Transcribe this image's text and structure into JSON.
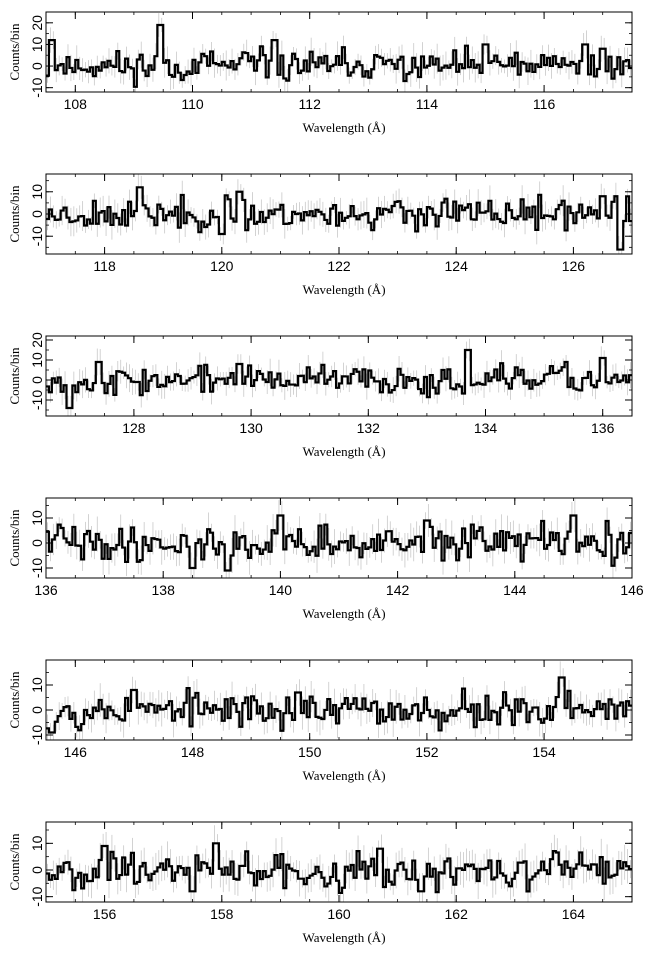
{
  "chart_data": [
    {
      "type": "line",
      "xlim": [
        107.5,
        117.5
      ],
      "ylim": [
        -12,
        25
      ],
      "xticks": [
        108,
        110,
        112,
        114,
        116
      ],
      "yticks": [
        -10,
        0,
        10,
        20
      ],
      "xlabel": "Wavelength (Å)",
      "ylabel": "Counts/bin",
      "seed": 11,
      "peaks": [
        [
          109.45,
          19
        ],
        [
          107.6,
          12
        ],
        [
          111.4,
          12
        ],
        [
          116.7,
          10
        ],
        [
          115.0,
          10
        ],
        [
          117.0,
          8
        ]
      ]
    },
    {
      "type": "line",
      "xlim": [
        117.0,
        127.0
      ],
      "ylim": [
        -18,
        18
      ],
      "xticks": [
        118,
        120,
        122,
        124,
        126
      ],
      "yticks": [
        -10,
        0,
        10
      ],
      "xlabel": "Wavelength (Å)",
      "ylabel": "Counts/bin",
      "seed": 23,
      "peaks": [
        [
          118.6,
          12
        ],
        [
          120.3,
          10
        ],
        [
          126.8,
          -16
        ],
        [
          126.5,
          8
        ],
        [
          120.0,
          -9
        ]
      ]
    },
    {
      "type": "line",
      "xlim": [
        126.5,
        136.5
      ],
      "ylim": [
        -18,
        22
      ],
      "xticks": [
        128,
        130,
        132,
        134,
        136
      ],
      "yticks": [
        -10,
        0,
        10,
        20
      ],
      "xlabel": "Wavelength (Å)",
      "ylabel": "Counts/bin",
      "seed": 37,
      "peaks": [
        [
          133.7,
          15
        ],
        [
          126.9,
          -14
        ],
        [
          136.0,
          11
        ],
        [
          127.4,
          9
        ],
        [
          129.8,
          8
        ]
      ]
    },
    {
      "type": "line",
      "xlim": [
        136.0,
        146.0
      ],
      "ylim": [
        -14,
        18
      ],
      "xticks": [
        136,
        138,
        140,
        142,
        144,
        146
      ],
      "yticks": [
        -10,
        0,
        10
      ],
      "xlabel": "Wavelength (Å)",
      "ylabel": "Counts/bin",
      "seed": 41,
      "peaks": [
        [
          140.0,
          11
        ],
        [
          145.0,
          11
        ],
        [
          139.1,
          -11
        ],
        [
          138.5,
          -10
        ],
        [
          142.5,
          9
        ]
      ]
    },
    {
      "type": "line",
      "xlim": [
        145.5,
        155.5
      ],
      "ylim": [
        -12,
        20
      ],
      "xticks": [
        146,
        148,
        150,
        152,
        154
      ],
      "yticks": [
        -10,
        0,
        10
      ],
      "xlabel": "Wavelength (Å)",
      "ylabel": "Counts/bin",
      "seed": 53,
      "peaks": [
        [
          154.3,
          13
        ],
        [
          147.0,
          8
        ],
        [
          149.8,
          7
        ],
        [
          145.6,
          -9
        ]
      ]
    },
    {
      "type": "line",
      "xlim": [
        155.0,
        165.0
      ],
      "ylim": [
        -12,
        18
      ],
      "xticks": [
        156,
        158,
        160,
        162,
        164
      ],
      "yticks": [
        -10,
        0,
        10
      ],
      "xlabel": "Wavelength (Å)",
      "ylabel": "Counts/bin",
      "seed": 67,
      "peaks": [
        [
          157.9,
          10
        ],
        [
          157.5,
          -8
        ],
        [
          160.7,
          8
        ],
        [
          161.4,
          -8
        ],
        [
          156.0,
          9
        ]
      ]
    }
  ]
}
